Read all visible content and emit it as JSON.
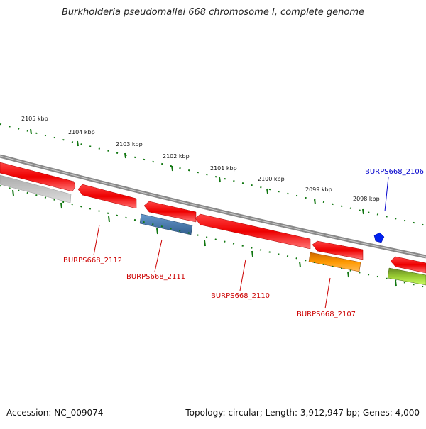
{
  "title": "Burkholderia pseudomallei 668 chromosome I, complete genome",
  "footer": {
    "accession": "Accession: NC_009074",
    "info": "Topology: circular; Length: 3,912,947 bp; Genes: 4,000"
  },
  "scale": {
    "tick_labels": [
      "2105 kbp",
      "2104 kbp",
      "2103 kbp",
      "2102 kbp",
      "2101 kbp",
      "2100 kbp",
      "2099 kbp",
      "2098 kbp"
    ]
  },
  "genes": {
    "labels": [
      "BURPS668_2106",
      "BURPS668_2112",
      "BURPS668_2111",
      "BURPS668_2110",
      "BURPS668_2107"
    ]
  },
  "colors": {
    "red_feature": "#ee0000",
    "blue_feature": "#4477aa",
    "orange_feature": "#ff9900",
    "gray_feature": "#bbbbbb",
    "green_feature": "#88cc33",
    "dark_blue_label": "#0000cc",
    "red_label": "#cc0000",
    "backbone": "#888888",
    "tick_green": "#117711"
  }
}
